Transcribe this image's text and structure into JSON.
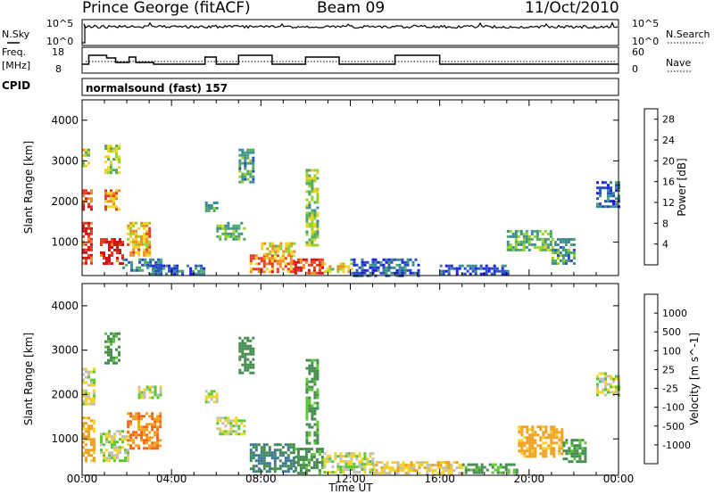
{
  "header": {
    "station": "Prince George (fitACF)",
    "beam": "Beam 09",
    "date": "11/Oct/2010"
  },
  "noise_panel": {
    "left_label": "N.Sky",
    "right_label": "N.Search",
    "left_ticks": [
      "10^5",
      "10^0"
    ],
    "right_ticks": [
      "10^5",
      "10^0"
    ]
  },
  "freq_panel": {
    "left_label_1": "Freq.",
    "left_label_2": "[MHz]",
    "left_ticks": [
      "18",
      "8"
    ],
    "right_label": "Nave",
    "right_ticks": [
      "60",
      "0"
    ]
  },
  "cpid_panel": {
    "label": "CPID",
    "program": "normalsound (fast) 157"
  },
  "x_axis": {
    "ticks": [
      "00:00",
      "04:00",
      "08:00",
      "12:00",
      "16:00",
      "20:00",
      "00:00"
    ],
    "label": "Time UT"
  },
  "chart_data": [
    {
      "type": "heatmap",
      "name": "power",
      "ylabel": "Slant Range [km]",
      "yticks": [
        "1000",
        "2000",
        "3000",
        "4000"
      ],
      "ylim": [
        180,
        4500
      ],
      "xlim": [
        0,
        24
      ],
      "colorbar": {
        "label": "Power [dB]",
        "ticks": [
          "4",
          "8",
          "12",
          "16",
          "20",
          "24",
          "28"
        ],
        "range": [
          0,
          30
        ],
        "colors": [
          "#1e1ee6",
          "#2850c0",
          "#3c8c96",
          "#50aa64",
          "#96d228",
          "#f0d228",
          "#f08c1e",
          "#e63c1e",
          "#d21414"
        ]
      },
      "regions": [
        {
          "t0": 0.0,
          "t1": 0.4,
          "r0": 500,
          "r1": 1500,
          "level": 27
        },
        {
          "t0": 0.0,
          "t1": 0.4,
          "r0": 1800,
          "r1": 2300,
          "level": 24
        },
        {
          "t0": 0.0,
          "t1": 0.3,
          "r0": 2900,
          "r1": 3300,
          "level": 16
        },
        {
          "t0": 0.8,
          "t1": 1.8,
          "r0": 500,
          "r1": 1100,
          "level": 28
        },
        {
          "t0": 1.0,
          "t1": 1.7,
          "r0": 1800,
          "r1": 2300,
          "level": 22
        },
        {
          "t0": 1.0,
          "t1": 1.6,
          "r0": 2700,
          "r1": 3400,
          "level": 15
        },
        {
          "t0": 2.0,
          "t1": 3.0,
          "r0": 700,
          "r1": 1500,
          "level": 20
        },
        {
          "t0": 1.8,
          "t1": 3.5,
          "r0": 300,
          "r1": 600,
          "level": 8
        },
        {
          "t0": 3.0,
          "t1": 5.5,
          "r0": 250,
          "r1": 450,
          "level": 6
        },
        {
          "t0": 5.5,
          "t1": 6.0,
          "r0": 1750,
          "r1": 2000,
          "level": 10
        },
        {
          "t0": 6.0,
          "t1": 7.3,
          "r0": 1100,
          "r1": 1500,
          "level": 12
        },
        {
          "t0": 7.0,
          "t1": 7.6,
          "r0": 2500,
          "r1": 3300,
          "level": 10
        },
        {
          "t0": 7.5,
          "t1": 9.5,
          "r0": 250,
          "r1": 700,
          "level": 22
        },
        {
          "t0": 8.0,
          "t1": 9.5,
          "r0": 700,
          "r1": 1000,
          "level": 18
        },
        {
          "t0": 9.5,
          "t1": 10.8,
          "r0": 250,
          "r1": 600,
          "level": 26
        },
        {
          "t0": 10.0,
          "t1": 10.5,
          "r0": 900,
          "r1": 2800,
          "level": 14
        },
        {
          "t0": 10.8,
          "t1": 12.0,
          "r0": 250,
          "r1": 500,
          "level": 18
        },
        {
          "t0": 12.0,
          "t1": 15.0,
          "r0": 200,
          "r1": 600,
          "level": 6
        },
        {
          "t0": 16.0,
          "t1": 19.0,
          "r0": 200,
          "r1": 450,
          "level": 5
        },
        {
          "t0": 19.0,
          "t1": 21.0,
          "r0": 800,
          "r1": 1300,
          "level": 12
        },
        {
          "t0": 21.0,
          "t1": 22.0,
          "r0": 500,
          "r1": 1100,
          "level": 10
        },
        {
          "t0": 23.0,
          "t1": 24.0,
          "r0": 1900,
          "r1": 2500,
          "level": 6
        }
      ]
    },
    {
      "type": "heatmap",
      "name": "velocity",
      "ylabel": "Slant Range [km]",
      "yticks": [
        "1000",
        "2000",
        "3000",
        "4000"
      ],
      "ylim": [
        180,
        4500
      ],
      "xlim": [
        0,
        24
      ],
      "colorbar": {
        "label": "Velocity [m s^-1]",
        "ticks": [
          "1000",
          "500",
          "100",
          "25",
          "-25",
          "-100",
          "-500",
          "-1000"
        ],
        "colors": [
          "#1e3cc8",
          "#3c7896",
          "#468c50",
          "#5ac832",
          "#c0c0b8",
          "#f0d228",
          "#f0a01e",
          "#f06414",
          "#e61e14"
        ]
      },
      "regions": [
        {
          "t0": 0.0,
          "t1": 0.5,
          "r0": 500,
          "r1": 1500,
          "vel": -150
        },
        {
          "t0": 0.0,
          "t1": 0.5,
          "r0": 1800,
          "r1": 2600,
          "vel": 0
        },
        {
          "t0": 0.8,
          "t1": 2.0,
          "r0": 500,
          "r1": 1200,
          "vel": 0
        },
        {
          "t0": 1.0,
          "t1": 1.6,
          "r0": 2700,
          "r1": 3400,
          "vel": 150
        },
        {
          "t0": 2.0,
          "t1": 3.5,
          "r0": 800,
          "r1": 1600,
          "vel": -300
        },
        {
          "t0": 2.5,
          "t1": 3.5,
          "r0": 1900,
          "r1": 2200,
          "vel": 0
        },
        {
          "t0": 5.5,
          "t1": 6.0,
          "r0": 1800,
          "r1": 2100,
          "vel": 0
        },
        {
          "t0": 6.0,
          "t1": 7.3,
          "r0": 1100,
          "r1": 1500,
          "vel": 0
        },
        {
          "t0": 7.0,
          "t1": 7.6,
          "r0": 2500,
          "r1": 3300,
          "vel": 200
        },
        {
          "t0": 7.5,
          "t1": 9.5,
          "r0": 250,
          "r1": 900,
          "vel": 300
        },
        {
          "t0": 9.5,
          "t1": 10.8,
          "r0": 250,
          "r1": 800,
          "vel": 150
        },
        {
          "t0": 10.0,
          "t1": 10.5,
          "r0": 900,
          "r1": 2800,
          "vel": 120
        },
        {
          "t0": 10.8,
          "t1": 13.0,
          "r0": 250,
          "r1": 700,
          "vel": 0
        },
        {
          "t0": 13.0,
          "t1": 17.0,
          "r0": 250,
          "r1": 500,
          "vel": -60
        },
        {
          "t0": 17.0,
          "t1": 19.5,
          "r0": 250,
          "r1": 450,
          "vel": 120
        },
        {
          "t0": 19.5,
          "t1": 21.5,
          "r0": 600,
          "r1": 1300,
          "vel": -150
        },
        {
          "t0": 21.5,
          "t1": 22.5,
          "r0": 500,
          "r1": 1000,
          "vel": 150
        },
        {
          "t0": 23.0,
          "t1": 24.0,
          "r0": 2000,
          "r1": 2500,
          "vel": 0
        }
      ]
    }
  ]
}
